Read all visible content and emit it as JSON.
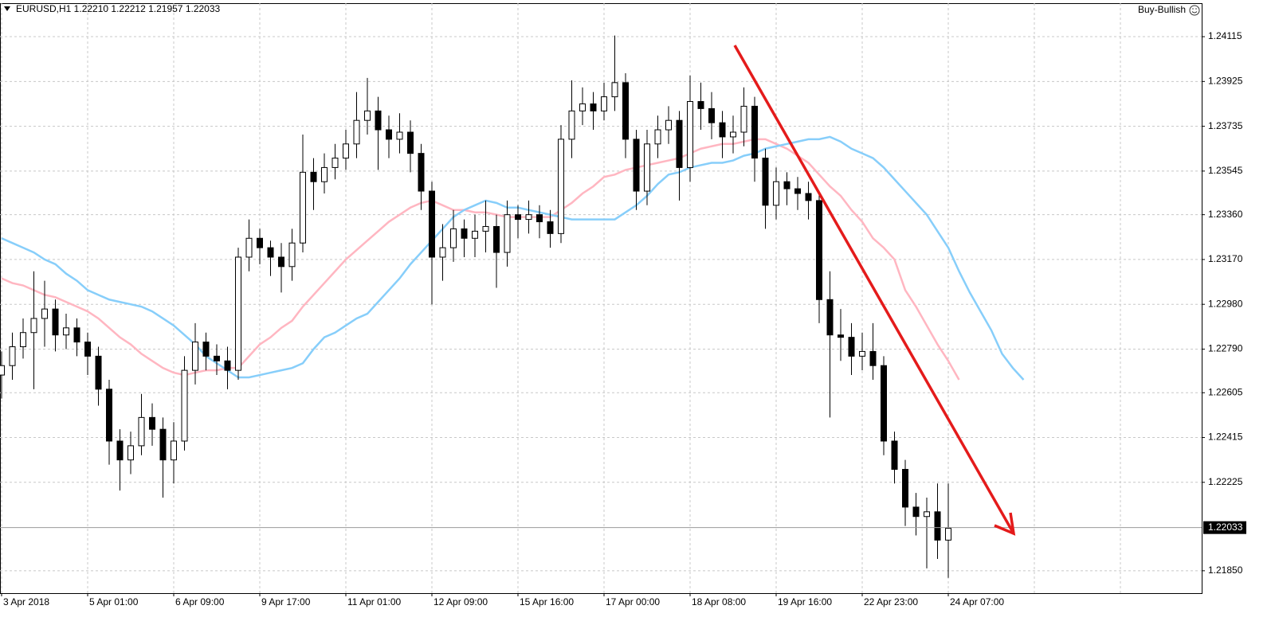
{
  "chart_data": {
    "type": "candlestick",
    "title": "EURUSD,H1  1.22210 1.22212 1.21957 1.22033",
    "annotation": "Buy-Bullish",
    "categories": [
      "3 Apr 2018",
      null,
      null,
      null,
      null,
      null,
      null,
      null,
      "5 Apr 01:00",
      null,
      null,
      null,
      null,
      null,
      null,
      null,
      "6 Apr 09:00",
      null,
      null,
      null,
      null,
      null,
      null,
      null,
      "9 Apr 17:00",
      null,
      null,
      null,
      null,
      null,
      null,
      null,
      "11 Apr 01:00",
      null,
      null,
      null,
      null,
      null,
      null,
      null,
      "12 Apr 09:00",
      null,
      null,
      null,
      null,
      null,
      null,
      null,
      "15 Apr 16:00",
      null,
      null,
      null,
      null,
      null,
      null,
      null,
      "17 Apr 00:00",
      null,
      null,
      null,
      null,
      null,
      null,
      null,
      "18 Apr 08:00",
      null,
      null,
      null,
      null,
      null,
      null,
      null,
      "19 Apr 16:00",
      null,
      null,
      null,
      null,
      null,
      null,
      null,
      "22 Apr 23:00",
      null,
      null,
      null,
      null,
      null,
      null,
      null,
      "24 Apr 07:00",
      null,
      null,
      null,
      null,
      null,
      null,
      null
    ],
    "open": [
      1.2268,
      1.2272,
      1.228,
      1.2286,
      1.2292,
      1.2296,
      1.2285,
      1.2288,
      1.2282,
      1.2276,
      1.2262,
      1.224,
      1.2232,
      1.2238,
      1.225,
      1.2245,
      1.2232,
      1.224,
      1.227,
      1.2282,
      1.2276,
      1.2274,
      1.227,
      1.2318,
      1.2326,
      1.2322,
      1.2318,
      1.2314,
      1.2324,
      1.2354,
      1.235,
      1.2356,
      1.236,
      1.2366,
      1.2376,
      1.238,
      1.2372,
      1.2368,
      1.2371,
      1.2362,
      1.2346,
      1.2318,
      1.2322,
      1.233,
      1.2326,
      1.2329,
      1.2331,
      1.232,
      1.2336,
      1.2334,
      1.2336,
      1.2333,
      1.2328,
      1.2368,
      1.238,
      1.2383,
      1.238,
      1.2386,
      1.2392,
      1.2368,
      1.2346,
      1.2366,
      1.2372,
      1.2376,
      1.2356,
      1.2384,
      1.2381,
      1.2375,
      1.2369,
      1.2371,
      1.2382,
      1.236,
      1.234,
      1.235,
      1.2347,
      1.2345,
      1.2342,
      1.23,
      1.2285,
      1.2284,
      1.2276,
      1.2278,
      1.2272,
      1.224,
      1.2228,
      1.2212,
      1.2208,
      1.221,
      1.2198,
      null,
      null,
      null,
      null,
      null,
      null,
      null
    ],
    "high": [
      1.2278,
      1.2286,
      1.2292,
      1.2312,
      1.2308,
      1.23,
      1.2294,
      1.2292,
      1.2286,
      1.228,
      1.2266,
      1.2245,
      1.2244,
      1.226,
      1.2256,
      1.225,
      1.2248,
      1.2276,
      1.229,
      1.2286,
      1.2281,
      1.228,
      1.2322,
      1.2334,
      1.233,
      1.2325,
      1.2324,
      1.233,
      1.237,
      1.236,
      1.2362,
      1.2366,
      1.2372,
      1.2388,
      1.2394,
      1.2386,
      1.2378,
      1.2379,
      1.2376,
      1.2366,
      1.235,
      1.2332,
      1.2338,
      1.2334,
      1.2336,
      1.2342,
      1.2336,
      1.2342,
      1.234,
      1.2342,
      1.234,
      1.2338,
      1.2374,
      1.2393,
      1.239,
      1.2388,
      1.2392,
      1.2412,
      1.2396,
      1.2372,
      1.2372,
      1.2378,
      1.2382,
      1.238,
      1.2395,
      1.2392,
      1.2388,
      1.238,
      1.2378,
      1.239,
      1.2386,
      1.2364,
      1.2356,
      1.2354,
      1.2352,
      1.235,
      1.2346,
      1.2312,
      1.2296,
      1.229,
      1.2286,
      1.229,
      1.2276,
      1.2244,
      1.2232,
      1.2218,
      1.2216,
      1.2222,
      1.2222,
      null,
      null,
      null,
      null,
      null,
      null,
      null
    ],
    "low": [
      1.2258,
      1.2266,
      1.2275,
      1.2262,
      1.228,
      1.2278,
      1.2279,
      1.2276,
      1.2268,
      1.2255,
      1.223,
      1.2219,
      1.2226,
      1.2234,
      1.2238,
      1.2216,
      1.2222,
      1.2236,
      1.2264,
      1.227,
      1.2268,
      1.2262,
      1.2266,
      1.2312,
      1.2315,
      1.231,
      1.2303,
      1.2308,
      1.232,
      1.2338,
      1.2345,
      1.2351,
      1.2355,
      1.236,
      1.237,
      1.2355,
      1.236,
      1.2362,
      1.2354,
      1.2338,
      1.2298,
      1.2308,
      1.2316,
      1.2318,
      1.2318,
      1.232,
      1.2305,
      1.2314,
      1.2326,
      1.2328,
      1.2326,
      1.2322,
      1.2324,
      1.236,
      1.2374,
      1.2372,
      1.2376,
      1.238,
      1.236,
      1.2338,
      1.234,
      1.236,
      1.2366,
      1.2342,
      1.235,
      1.2372,
      1.2368,
      1.236,
      1.2362,
      1.2365,
      1.235,
      1.233,
      1.2334,
      1.234,
      1.2338,
      1.2334,
      1.229,
      1.225,
      1.2274,
      1.2268,
      1.227,
      1.2266,
      1.2234,
      1.2222,
      1.2204,
      1.22,
      1.2186,
      1.219,
      1.2182,
      null,
      null,
      null,
      null,
      null,
      null,
      null
    ],
    "close": [
      1.2272,
      1.228,
      1.2286,
      1.2292,
      1.2296,
      1.2285,
      1.2288,
      1.2282,
      1.2276,
      1.2262,
      1.224,
      1.2232,
      1.2238,
      1.225,
      1.2245,
      1.2232,
      1.224,
      1.227,
      1.2282,
      1.2276,
      1.2274,
      1.227,
      1.2318,
      1.2326,
      1.2322,
      1.2318,
      1.2314,
      1.2324,
      1.2354,
      1.235,
      1.2356,
      1.236,
      1.2366,
      1.2376,
      1.238,
      1.2372,
      1.2368,
      1.2371,
      1.2362,
      1.2346,
      1.2318,
      1.2322,
      1.233,
      1.2326,
      1.2329,
      1.2331,
      1.232,
      1.2336,
      1.2334,
      1.2336,
      1.2333,
      1.2328,
      1.2368,
      1.238,
      1.2383,
      1.238,
      1.2386,
      1.2392,
      1.2368,
      1.2346,
      1.2366,
      1.2372,
      1.2376,
      1.2356,
      1.2384,
      1.2381,
      1.2375,
      1.2369,
      1.2371,
      1.2382,
      1.236,
      1.234,
      1.235,
      1.2347,
      1.2345,
      1.2342,
      1.23,
      1.2285,
      1.2284,
      1.2276,
      1.2278,
      1.2272,
      1.224,
      1.2228,
      1.2212,
      1.2208,
      1.221,
      1.2198,
      1.2203,
      null,
      null,
      null,
      null,
      null,
      null,
      null
    ],
    "up_color": "#ffffff",
    "down_color": "#000000",
    "moving_averages": [
      {
        "color": "#ffb6c1",
        "values": [
          1.2309,
          1.2307,
          1.2306,
          1.2304,
          1.2302,
          1.2301,
          1.2299,
          1.2297,
          1.2295,
          1.2292,
          1.2288,
          1.2284,
          1.2281,
          1.2277,
          1.2274,
          1.2271,
          1.2269,
          1.2268,
          1.2269,
          1.227,
          1.227,
          1.2271,
          1.2271,
          1.2276,
          1.2281,
          1.2284,
          1.2288,
          1.2291,
          1.2297,
          1.2302,
          1.2307,
          1.2312,
          1.2317,
          1.2321,
          1.2325,
          1.2329,
          1.2333,
          1.2336,
          1.2339,
          1.2341,
          1.2342,
          1.234,
          1.2338,
          1.2338,
          1.2337,
          1.2337,
          1.2336,
          1.2335,
          1.2335,
          1.2335,
          1.2335,
          1.2335,
          1.2338,
          1.2341,
          1.2345,
          1.2348,
          1.2352,
          1.2353,
          1.2355,
          1.2356,
          1.2357,
          1.2358,
          1.2359,
          1.236,
          1.2362,
          1.2364,
          1.2365,
          1.2366,
          1.2366,
          1.2367,
          1.2368,
          1.2368,
          1.2366,
          1.2364,
          1.2361,
          1.2358,
          1.2353,
          1.2348,
          1.2344,
          1.2338,
          1.2333,
          1.2326,
          1.2322,
          1.2317,
          1.2304,
          1.2297,
          1.2289,
          1.2281,
          1.2274,
          1.2266,
          null,
          null,
          null,
          null,
          null,
          null
        ]
      },
      {
        "color": "#87cefa",
        "values": [
          1.2326,
          1.2324,
          1.2322,
          1.232,
          1.2317,
          1.2315,
          1.2311,
          1.2308,
          1.2304,
          1.2302,
          1.23,
          1.2299,
          1.2298,
          1.2297,
          1.2295,
          1.2292,
          1.2289,
          1.2285,
          1.2281,
          1.2276,
          1.2273,
          1.227,
          1.2267,
          1.2267,
          1.2268,
          1.2269,
          1.227,
          1.2271,
          1.2273,
          1.2279,
          1.2284,
          1.2286,
          1.2289,
          1.2292,
          1.2294,
          1.2299,
          1.2304,
          1.2309,
          1.2315,
          1.232,
          1.2325,
          1.233,
          1.2335,
          1.2338,
          1.234,
          1.2342,
          1.2341,
          1.2339,
          1.2339,
          1.2338,
          1.2337,
          1.2336,
          1.2335,
          1.2334,
          1.2334,
          1.2334,
          1.2334,
          1.2334,
          1.2337,
          1.234,
          1.2344,
          1.2349,
          1.2353,
          1.2354,
          1.2356,
          1.2357,
          1.2358,
          1.2358,
          1.2359,
          1.2361,
          1.2362,
          1.2364,
          1.2365,
          1.2366,
          1.2367,
          1.2368,
          1.2368,
          1.2369,
          1.2367,
          1.2364,
          1.2362,
          1.236,
          1.2356,
          1.2351,
          1.2346,
          1.2341,
          1.2336,
          1.2329,
          1.2322,
          1.2312,
          1.2303,
          1.2295,
          1.2287,
          1.2277,
          1.2271,
          1.2266
        ]
      }
    ],
    "current_price": {
      "value": 1.22033,
      "label": "1.22033"
    },
    "ylim": [
      1.21755,
      1.24257
    ],
    "yticks": [
      {
        "value": 1.24115,
        "label": "1.24115"
      },
      {
        "value": 1.23925,
        "label": "1.23925"
      },
      {
        "value": 1.23735,
        "label": "1.23735"
      },
      {
        "value": 1.23545,
        "label": "1.23545"
      },
      {
        "value": 1.2336,
        "label": "1.23360"
      },
      {
        "value": 1.2317,
        "label": "1.23170"
      },
      {
        "value": 1.2298,
        "label": "1.22980"
      },
      {
        "value": 1.2279,
        "label": "1.22790"
      },
      {
        "value": 1.22605,
        "label": "1.22605"
      },
      {
        "value": 1.22415,
        "label": "1.22415"
      },
      {
        "value": 1.22225,
        "label": "1.22225"
      },
      {
        "value": 1.2185,
        "label": "1.21850"
      }
    ],
    "grid": true
  }
}
